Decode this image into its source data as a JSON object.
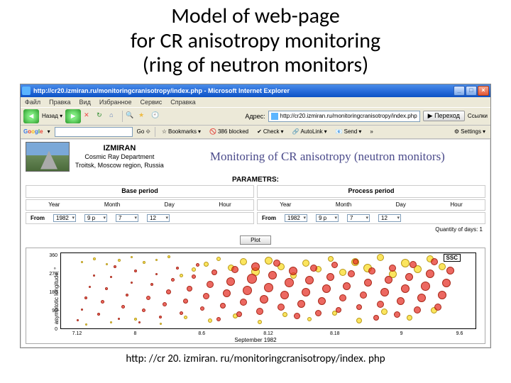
{
  "slide": {
    "title_l1": "Model of web-page",
    "title_l2": "for CR anisotropy monitoring",
    "title_l3": "(ring of neutron monitors)",
    "footer": "http: //cr 20. izmiran. ru/monitoringcranisotropy/index. php"
  },
  "browser": {
    "window_title": "http://cr20.izmiran.ru/monitoringcranisotropy/index.php - Microsoft Internet Explorer",
    "menu": [
      "Файл",
      "Правка",
      "Вид",
      "Избранное",
      "Сервис",
      "Справка"
    ],
    "address_label": "Адрес:",
    "address_value": "http://cr20.izmiran.ru/monitoringcranisotropy/index.php",
    "go_label": "Переход",
    "google": {
      "bookmarks": "Bookmarks",
      "blocked": "386 blocked",
      "check": "Check",
      "autolink": "AutoLink",
      "send": "Send",
      "settings": "Settings"
    }
  },
  "page": {
    "org_name": "IZMIRAN",
    "org_dept": "Cosmic Ray Department",
    "org_loc": "Troitsk, Moscow region, Russia",
    "title": "Monitoring of CR anisotropy (neutron monitors)",
    "params_label": "PARAMETRS:",
    "base_period": "Base period",
    "process_period": "Process period",
    "labels": {
      "year": "Year",
      "month": "Month",
      "day": "Day",
      "hour": "Hour",
      "from": "From"
    },
    "base": {
      "year": "1982",
      "month": "9 р",
      "day": "7",
      "hour": "12"
    },
    "proc": {
      "year": "1982",
      "month": "9 р",
      "day": "7",
      "hour": "12"
    },
    "qty_label": "Quantity of days:",
    "qty_value": "1",
    "plot_btn": "Plot"
  },
  "chart": {
    "ylabel": "asymptotic longitude, °",
    "xlabel": "September 1982",
    "yticks": [
      {
        "v": 0,
        "p": 0
      },
      {
        "v": 90,
        "p": 25
      },
      {
        "v": 180,
        "p": 50
      },
      {
        "v": 270,
        "p": 75
      },
      {
        "v": 360,
        "p": 100
      }
    ],
    "xticks": [
      {
        "v": "7.12",
        "p": 4
      },
      {
        "v": "8",
        "p": 18
      },
      {
        "v": "8.6",
        "p": 34
      },
      {
        "v": "8.12",
        "p": 50
      },
      {
        "v": "8.18",
        "p": 66
      },
      {
        "v": "9",
        "p": 82
      },
      {
        "v": "9.6",
        "p": 96
      }
    ],
    "ssc": "SSC",
    "reds": [
      [
        4,
        10,
        3
      ],
      [
        5,
        25,
        3
      ],
      [
        6,
        40,
        4
      ],
      [
        7,
        55,
        3
      ],
      [
        8,
        70,
        3
      ],
      [
        9,
        18,
        4
      ],
      [
        10,
        35,
        5
      ],
      [
        11,
        52,
        4
      ],
      [
        12,
        68,
        3
      ],
      [
        13,
        82,
        4
      ],
      [
        14,
        12,
        3
      ],
      [
        15,
        28,
        5
      ],
      [
        16,
        44,
        4
      ],
      [
        17,
        60,
        3
      ],
      [
        18,
        76,
        4
      ],
      [
        19,
        8,
        3
      ],
      [
        20,
        24,
        5
      ],
      [
        21,
        40,
        6
      ],
      [
        22,
        58,
        4
      ],
      [
        23,
        72,
        3
      ],
      [
        24,
        15,
        4
      ],
      [
        25,
        32,
        6
      ],
      [
        26,
        48,
        7
      ],
      [
        27,
        64,
        5
      ],
      [
        28,
        80,
        4
      ],
      [
        29,
        20,
        5
      ],
      [
        30,
        36,
        7
      ],
      [
        31,
        52,
        8
      ],
      [
        32,
        68,
        6
      ],
      [
        33,
        84,
        5
      ],
      [
        34,
        26,
        6
      ],
      [
        35,
        42,
        9
      ],
      [
        36,
        58,
        10
      ],
      [
        37,
        74,
        8
      ],
      [
        38,
        12,
        6
      ],
      [
        39,
        30,
        8
      ],
      [
        40,
        46,
        11
      ],
      [
        41,
        62,
        12
      ],
      [
        42,
        78,
        10
      ],
      [
        43,
        18,
        8
      ],
      [
        44,
        34,
        10
      ],
      [
        45,
        50,
        13
      ],
      [
        46,
        66,
        14
      ],
      [
        47,
        82,
        12
      ],
      [
        48,
        22,
        10
      ],
      [
        49,
        38,
        12
      ],
      [
        50,
        54,
        13
      ],
      [
        51,
        70,
        12
      ],
      [
        52,
        86,
        10
      ],
      [
        53,
        28,
        10
      ],
      [
        54,
        44,
        12
      ],
      [
        55,
        60,
        13
      ],
      [
        56,
        76,
        12
      ],
      [
        57,
        16,
        9
      ],
      [
        58,
        32,
        11
      ],
      [
        59,
        48,
        12
      ],
      [
        60,
        64,
        12
      ],
      [
        61,
        80,
        10
      ],
      [
        62,
        20,
        9
      ],
      [
        63,
        36,
        11
      ],
      [
        64,
        52,
        12
      ],
      [
        65,
        68,
        11
      ],
      [
        66,
        84,
        9
      ],
      [
        67,
        24,
        8
      ],
      [
        68,
        40,
        10
      ],
      [
        69,
        56,
        11
      ],
      [
        70,
        72,
        10
      ],
      [
        71,
        88,
        8
      ],
      [
        72,
        28,
        8
      ],
      [
        73,
        44,
        10
      ],
      [
        74,
        60,
        11
      ],
      [
        75,
        76,
        10
      ],
      [
        76,
        14,
        8
      ],
      [
        77,
        32,
        10
      ],
      [
        78,
        48,
        12
      ],
      [
        79,
        64,
        11
      ],
      [
        80,
        80,
        10
      ],
      [
        81,
        18,
        9
      ],
      [
        82,
        36,
        11
      ],
      [
        83,
        52,
        12
      ],
      [
        84,
        68,
        11
      ],
      [
        85,
        84,
        10
      ],
      [
        86,
        24,
        10
      ],
      [
        87,
        40,
        12
      ],
      [
        88,
        56,
        13
      ],
      [
        89,
        72,
        12
      ],
      [
        90,
        88,
        10
      ],
      [
        91,
        28,
        10
      ],
      [
        92,
        44,
        12
      ],
      [
        93,
        60,
        12
      ],
      [
        94,
        76,
        11
      ]
    ],
    "yellows": [
      [
        5,
        88,
        3
      ],
      [
        8,
        92,
        4
      ],
      [
        11,
        85,
        3
      ],
      [
        14,
        90,
        4
      ],
      [
        17,
        94,
        3
      ],
      [
        20,
        87,
        4
      ],
      [
        23,
        91,
        3
      ],
      [
        26,
        95,
        4
      ],
      [
        29,
        70,
        5
      ],
      [
        32,
        78,
        6
      ],
      [
        35,
        85,
        7
      ],
      [
        38,
        92,
        6
      ],
      [
        41,
        80,
        9
      ],
      [
        44,
        88,
        10
      ],
      [
        47,
        75,
        12
      ],
      [
        50,
        90,
        11
      ],
      [
        53,
        82,
        10
      ],
      [
        56,
        70,
        9
      ],
      [
        59,
        86,
        10
      ],
      [
        62,
        78,
        9
      ],
      [
        65,
        92,
        8
      ],
      [
        68,
        74,
        10
      ],
      [
        71,
        88,
        11
      ],
      [
        74,
        80,
        12
      ],
      [
        77,
        94,
        10
      ],
      [
        80,
        72,
        11
      ],
      [
        83,
        86,
        12
      ],
      [
        86,
        78,
        11
      ],
      [
        89,
        92,
        10
      ],
      [
        92,
        82,
        10
      ],
      [
        6,
        5,
        3
      ],
      [
        12,
        8,
        3
      ],
      [
        18,
        12,
        4
      ],
      [
        24,
        6,
        3
      ],
      [
        30,
        14,
        5
      ],
      [
        36,
        10,
        6
      ],
      [
        42,
        16,
        7
      ],
      [
        48,
        8,
        6
      ],
      [
        54,
        18,
        7
      ],
      [
        60,
        12,
        6
      ],
      [
        66,
        20,
        7
      ],
      [
        72,
        10,
        8
      ],
      [
        78,
        22,
        9
      ],
      [
        84,
        14,
        8
      ],
      [
        90,
        24,
        9
      ]
    ]
  }
}
